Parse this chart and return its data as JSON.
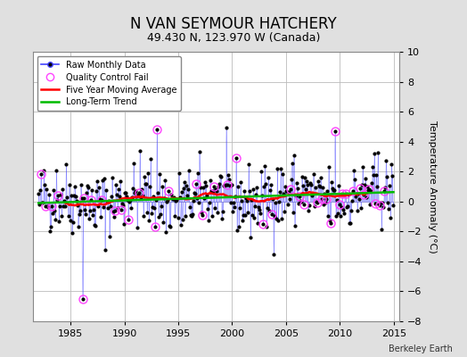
{
  "title": "N VAN SEYMOUR HATCHERY",
  "subtitle": "49.430 N, 123.970 W (Canada)",
  "ylabel": "Temperature Anomaly (°C)",
  "credit": "Berkeley Earth",
  "ylim": [
    -8,
    10
  ],
  "xlim": [
    1981.5,
    2015.5
  ],
  "xticks": [
    1985,
    1990,
    1995,
    2000,
    2005,
    2010,
    2015
  ],
  "yticks": [
    -8,
    -6,
    -4,
    -2,
    0,
    2,
    4,
    6,
    8,
    10
  ],
  "raw_line_color": "#4444ff",
  "raw_dot_color": "#000000",
  "qc_marker_color": "#ff44ff",
  "moving_avg_color": "#ff0000",
  "trend_color": "#00bb00",
  "background_color": "#e0e0e0",
  "plot_bg_color": "#ffffff",
  "grid_color": "#bbbbbb",
  "seed": 42
}
